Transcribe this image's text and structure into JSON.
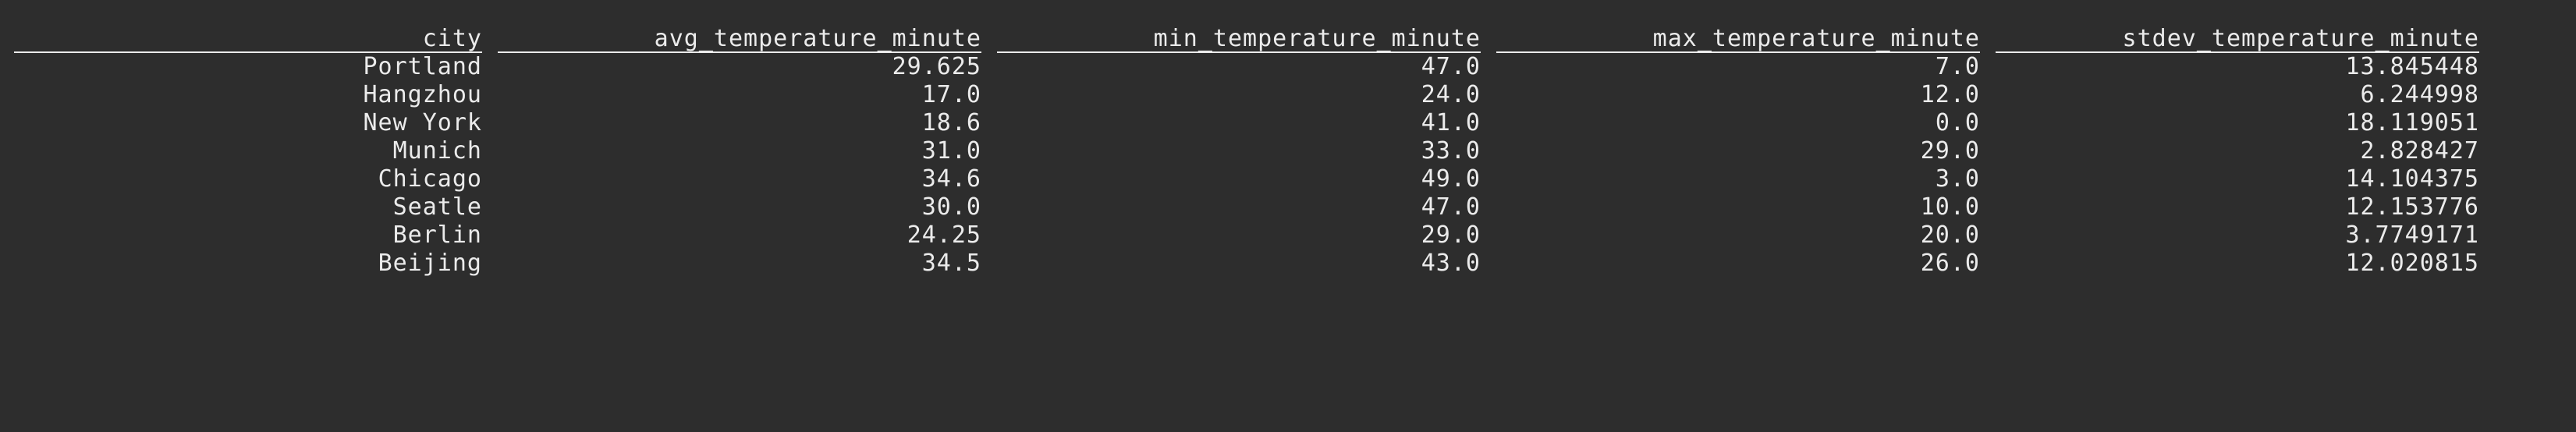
{
  "table": {
    "columns": [
      "city",
      "avg_temperature_minute",
      "min_temperature_minute",
      "max_temperature_minute",
      "stdev_temperature_minute"
    ],
    "rows": [
      [
        "Portland",
        "29.625",
        "47.0",
        "7.0",
        "13.845448"
      ],
      [
        "Hangzhou",
        "17.0",
        "24.0",
        "12.0",
        "6.244998"
      ],
      [
        "New York",
        "18.6",
        "41.0",
        "0.0",
        "18.119051"
      ],
      [
        "Munich",
        "31.0",
        "33.0",
        "29.0",
        "2.828427"
      ],
      [
        "Chicago",
        "34.6",
        "49.0",
        "3.0",
        "14.104375"
      ],
      [
        "Seatle",
        "30.0",
        "47.0",
        "10.0",
        "12.153776"
      ],
      [
        "Berlin",
        "24.25",
        "29.0",
        "20.0",
        "3.7749171"
      ],
      [
        "Beijing",
        "34.5",
        "43.0",
        "26.0",
        "12.020815"
      ]
    ]
  }
}
